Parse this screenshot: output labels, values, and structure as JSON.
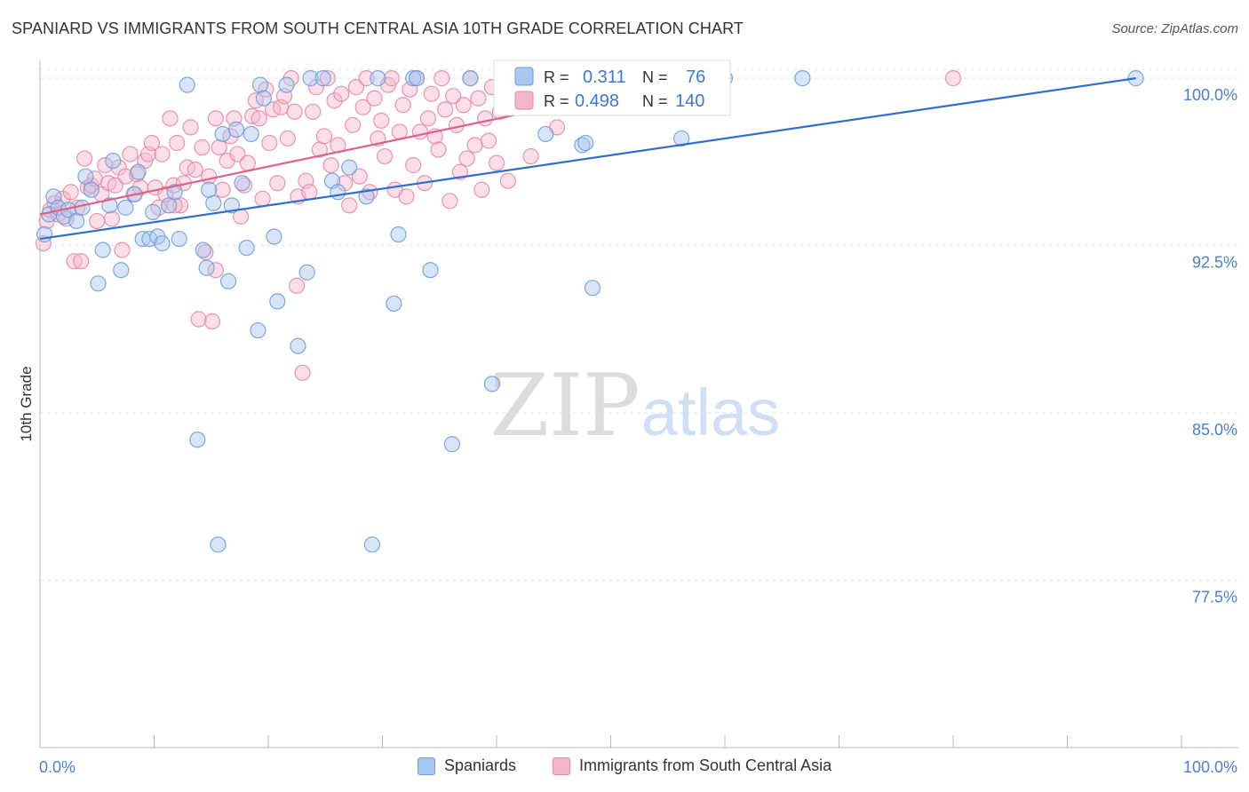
{
  "header": {
    "title": "SPANIARD VS IMMIGRANTS FROM SOUTH CENTRAL ASIA 10TH GRADE CORRELATION CHART",
    "source": "Source: ZipAtlas.com"
  },
  "watermark": {
    "zip": "ZIP",
    "atlas": "atlas"
  },
  "colors": {
    "blue_fill": "#a9c6f0",
    "blue_stroke": "#6f9fdc",
    "blue_line": "#2f6fcf",
    "pink_fill": "#f6b6c9",
    "pink_stroke": "#e68aa6",
    "pink_line": "#e0608a",
    "axis_label": "#4a7fd0",
    "grid": "#e3e3e3"
  },
  "chart_data": {
    "type": "scatter",
    "title": "SPANIARD VS IMMIGRANTS FROM SOUTH CENTRAL ASIA 10TH GRADE CORRELATION CHART",
    "xlabel": "",
    "ylabel": "10th Grade",
    "xlim": [
      0,
      100
    ],
    "ylim": [
      70,
      100.8
    ],
    "x_tick_labels": [
      "0.0%",
      "100.0%"
    ],
    "y_ticks": [
      77.5,
      85.0,
      92.5,
      100.0
    ],
    "y_tick_labels": [
      "77.5%",
      "85.0%",
      "92.5%",
      "100.0%"
    ],
    "grid": true,
    "legend_position": "top-center",
    "stats": [
      {
        "r_label": "R =",
        "r_value": "0.311",
        "n_label": "N =",
        "n_value": "76"
      },
      {
        "r_label": "R =",
        "r_value": "0.498",
        "n_label": "N =",
        "n_value": "140"
      }
    ],
    "series": [
      {
        "name": "Spaniards",
        "trend": {
          "x": [
            0,
            96
          ],
          "y": [
            92.8,
            100.0
          ]
        },
        "points": [
          [
            0.4,
            93.0
          ],
          [
            0.8,
            93.9
          ],
          [
            1.2,
            94.7
          ],
          [
            1.6,
            94.2
          ],
          [
            2.1,
            93.8
          ],
          [
            2.5,
            94.1
          ],
          [
            3.2,
            93.6
          ],
          [
            3.7,
            94.2
          ],
          [
            4.0,
            95.6
          ],
          [
            4.5,
            95.0
          ],
          [
            5.1,
            90.8
          ],
          [
            5.5,
            92.3
          ],
          [
            6.1,
            94.3
          ],
          [
            6.4,
            96.3
          ],
          [
            7.1,
            91.4
          ],
          [
            7.5,
            94.2
          ],
          [
            8.3,
            94.8
          ],
          [
            8.6,
            95.8
          ],
          [
            9.0,
            92.8
          ],
          [
            9.6,
            92.8
          ],
          [
            9.9,
            94.0
          ],
          [
            10.3,
            92.9
          ],
          [
            10.7,
            92.6
          ],
          [
            11.3,
            94.3
          ],
          [
            11.8,
            94.9
          ],
          [
            12.2,
            92.8
          ],
          [
            12.9,
            99.7
          ],
          [
            13.8,
            83.8
          ],
          [
            14.3,
            92.3
          ],
          [
            14.6,
            91.5
          ],
          [
            15.2,
            94.4
          ],
          [
            15.6,
            79.1
          ],
          [
            16.0,
            97.5
          ],
          [
            16.5,
            90.9
          ],
          [
            16.8,
            94.3
          ],
          [
            17.2,
            97.7
          ],
          [
            17.7,
            95.3
          ],
          [
            18.1,
            92.4
          ],
          [
            18.5,
            97.5
          ],
          [
            19.1,
            88.7
          ],
          [
            19.3,
            99.7
          ],
          [
            19.6,
            99.1
          ],
          [
            20.5,
            92.9
          ],
          [
            20.8,
            90.0
          ],
          [
            21.6,
            99.7
          ],
          [
            22.6,
            88.0
          ],
          [
            23.4,
            91.3
          ],
          [
            23.7,
            100.0
          ],
          [
            24.8,
            100.0
          ],
          [
            25.6,
            95.4
          ],
          [
            26.1,
            94.9
          ],
          [
            27.1,
            96.0
          ],
          [
            28.6,
            94.7
          ],
          [
            29.1,
            79.1
          ],
          [
            29.6,
            100.0
          ],
          [
            31.0,
            89.9
          ],
          [
            31.4,
            93.0
          ],
          [
            32.7,
            100.0
          ],
          [
            33.0,
            100.0
          ],
          [
            34.2,
            91.4
          ],
          [
            36.1,
            83.6
          ],
          [
            37.7,
            100.0
          ],
          [
            39.6,
            86.3
          ],
          [
            44.3,
            97.5
          ],
          [
            47.5,
            97.0
          ],
          [
            47.8,
            97.1
          ],
          [
            48.4,
            90.6
          ],
          [
            49.0,
            99.9
          ],
          [
            52.1,
            99.1
          ],
          [
            55.3,
            100.0
          ],
          [
            56.2,
            97.3
          ],
          [
            57.4,
            100.0
          ],
          [
            60.0,
            100.0
          ],
          [
            66.8,
            100.0
          ],
          [
            96.0,
            100.0
          ],
          [
            14.8,
            95.0
          ]
        ]
      },
      {
        "name": "Immigrants from South Central Asia",
        "trend": {
          "x": [
            0,
            57
          ],
          "y": [
            93.9,
            100.0
          ]
        },
        "points": [
          [
            0.3,
            92.6
          ],
          [
            0.6,
            93.6
          ],
          [
            0.9,
            94.1
          ],
          [
            1.3,
            94.4
          ],
          [
            1.6,
            93.9
          ],
          [
            2.0,
            94.6
          ],
          [
            2.3,
            93.7
          ],
          [
            2.7,
            94.9
          ],
          [
            3.0,
            91.8
          ],
          [
            3.3,
            94.2
          ],
          [
            3.6,
            91.8
          ],
          [
            3.9,
            96.4
          ],
          [
            4.2,
            95.1
          ],
          [
            4.5,
            95.2
          ],
          [
            4.8,
            95.5
          ],
          [
            5.0,
            93.6
          ],
          [
            5.4,
            94.8
          ],
          [
            5.7,
            96.1
          ],
          [
            6.0,
            95.3
          ],
          [
            6.3,
            93.7
          ],
          [
            6.6,
            95.2
          ],
          [
            6.9,
            96.0
          ],
          [
            7.2,
            92.3
          ],
          [
            7.5,
            95.6
          ],
          [
            7.9,
            96.6
          ],
          [
            8.2,
            94.8
          ],
          [
            8.5,
            95.7
          ],
          [
            8.8,
            95.1
          ],
          [
            9.2,
            96.3
          ],
          [
            9.5,
            96.6
          ],
          [
            9.8,
            97.1
          ],
          [
            10.1,
            95.1
          ],
          [
            10.4,
            94.2
          ],
          [
            10.7,
            96.6
          ],
          [
            11.0,
            94.8
          ],
          [
            11.4,
            98.2
          ],
          [
            11.7,
            95.2
          ],
          [
            12.0,
            97.1
          ],
          [
            12.3,
            94.3
          ],
          [
            12.6,
            95.3
          ],
          [
            12.9,
            96.0
          ],
          [
            13.2,
            97.8
          ],
          [
            13.6,
            95.9
          ],
          [
            13.9,
            89.2
          ],
          [
            14.2,
            96.9
          ],
          [
            14.5,
            92.2
          ],
          [
            14.8,
            95.6
          ],
          [
            15.1,
            89.1
          ],
          [
            15.4,
            98.2
          ],
          [
            15.7,
            96.9
          ],
          [
            16.0,
            95.0
          ],
          [
            16.4,
            96.3
          ],
          [
            16.7,
            97.4
          ],
          [
            17.0,
            98.2
          ],
          [
            17.3,
            96.6
          ],
          [
            17.6,
            93.8
          ],
          [
            17.9,
            95.2
          ],
          [
            18.2,
            96.2
          ],
          [
            18.6,
            98.3
          ],
          [
            18.9,
            99.0
          ],
          [
            19.2,
            98.2
          ],
          [
            19.5,
            94.6
          ],
          [
            19.8,
            99.5
          ],
          [
            20.1,
            97.1
          ],
          [
            20.4,
            98.6
          ],
          [
            20.8,
            95.3
          ],
          [
            21.1,
            98.7
          ],
          [
            21.4,
            99.2
          ],
          [
            21.7,
            97.3
          ],
          [
            22.0,
            100.0
          ],
          [
            22.3,
            98.5
          ],
          [
            22.6,
            94.7
          ],
          [
            23.0,
            86.8
          ],
          [
            23.3,
            95.4
          ],
          [
            23.6,
            94.9
          ],
          [
            23.9,
            98.5
          ],
          [
            24.2,
            99.6
          ],
          [
            24.5,
            96.8
          ],
          [
            24.9,
            97.4
          ],
          [
            25.2,
            100.0
          ],
          [
            25.5,
            96.1
          ],
          [
            25.8,
            99.0
          ],
          [
            26.1,
            97.0
          ],
          [
            26.4,
            99.3
          ],
          [
            26.7,
            95.3
          ],
          [
            27.1,
            94.3
          ],
          [
            27.4,
            97.9
          ],
          [
            27.7,
            99.6
          ],
          [
            28.0,
            95.6
          ],
          [
            28.3,
            98.7
          ],
          [
            28.6,
            100.0
          ],
          [
            28.9,
            94.9
          ],
          [
            29.3,
            99.1
          ],
          [
            29.6,
            97.3
          ],
          [
            29.9,
            98.1
          ],
          [
            30.2,
            96.5
          ],
          [
            30.5,
            99.7
          ],
          [
            30.8,
            100.0
          ],
          [
            31.1,
            95.0
          ],
          [
            31.5,
            97.6
          ],
          [
            31.8,
            98.8
          ],
          [
            32.1,
            94.7
          ],
          [
            32.4,
            99.5
          ],
          [
            32.7,
            96.1
          ],
          [
            33.0,
            100.0
          ],
          [
            33.3,
            97.6
          ],
          [
            33.7,
            95.3
          ],
          [
            34.0,
            98.2
          ],
          [
            34.3,
            99.3
          ],
          [
            34.6,
            97.4
          ],
          [
            34.9,
            96.8
          ],
          [
            35.2,
            100.0
          ],
          [
            35.5,
            98.6
          ],
          [
            35.9,
            94.5
          ],
          [
            36.2,
            99.2
          ],
          [
            36.5,
            97.9
          ],
          [
            36.8,
            95.8
          ],
          [
            37.1,
            98.8
          ],
          [
            37.4,
            96.4
          ],
          [
            37.7,
            100.0
          ],
          [
            38.1,
            97.0
          ],
          [
            38.4,
            99.1
          ],
          [
            38.7,
            95.0
          ],
          [
            39.0,
            98.2
          ],
          [
            39.3,
            97.2
          ],
          [
            39.6,
            99.6
          ],
          [
            40.0,
            96.2
          ],
          [
            40.3,
            98.5
          ],
          [
            40.6,
            99.0
          ],
          [
            41.0,
            95.4
          ],
          [
            42.0,
            99.7
          ],
          [
            43.0,
            96.5
          ],
          [
            44.2,
            99.3
          ],
          [
            45.3,
            97.8
          ],
          [
            46.3,
            99.1
          ],
          [
            53.0,
            100.0
          ],
          [
            80.0,
            100.0
          ],
          [
            11.8,
            94.3
          ],
          [
            15.4,
            91.4
          ],
          [
            22.5,
            90.7
          ]
        ]
      }
    ]
  },
  "legend_bottom": [
    {
      "label": "Spaniards"
    },
    {
      "label": "Immigrants from South Central Asia"
    }
  ]
}
